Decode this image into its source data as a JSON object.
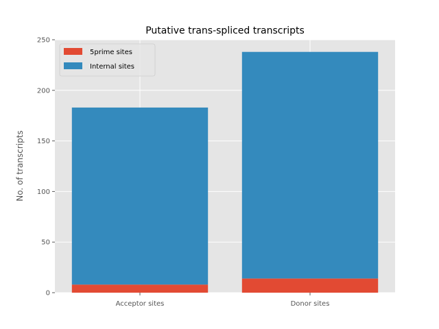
{
  "chart_data": {
    "type": "bar",
    "stacked": true,
    "title": "Putative trans-spliced transcripts",
    "xlabel": "",
    "ylabel": "No. of transcripts",
    "categories": [
      "Acceptor sites",
      "Donor sites"
    ],
    "series": [
      {
        "name": "5prime sites",
        "values": [
          8,
          14
        ],
        "color": "#E24A33"
      },
      {
        "name": "Internal sites",
        "values": [
          175,
          224
        ],
        "color": "#348ABD"
      }
    ],
    "ylim": [
      0,
      250
    ],
    "yticks": [
      0,
      50,
      100,
      150,
      200,
      250
    ],
    "grid": true,
    "legend_position": "top-left",
    "background_color": "#E5E5E5",
    "grid_color": "#FFFFFF"
  }
}
